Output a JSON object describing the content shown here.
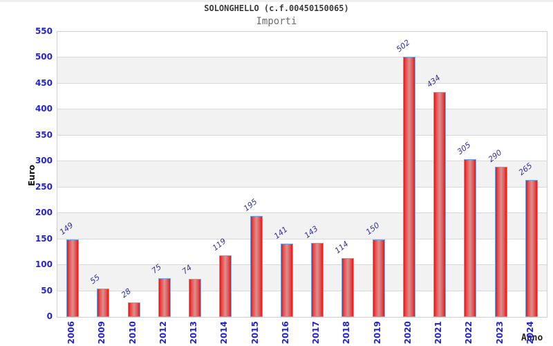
{
  "page": {
    "title": "SOLONGHELLO (c.f.00450150065)",
    "subtitle": "Importi"
  },
  "chart_data": {
    "type": "bar",
    "title": "SOLONGHELLO (c.f.00450150065)",
    "subtitle": "Importi",
    "xlabel": "Anno",
    "ylabel": "Euro",
    "categories": [
      "2006",
      "2009",
      "2010",
      "2012",
      "2013",
      "2014",
      "2015",
      "2016",
      "2017",
      "2018",
      "2019",
      "2020",
      "2021",
      "2022",
      "2023",
      "2024"
    ],
    "values": [
      149,
      55,
      28,
      75,
      74,
      119,
      195,
      141,
      143,
      114,
      150,
      502,
      434,
      305,
      290,
      265
    ],
    "ylim": [
      0,
      550
    ],
    "ytick_step": 50,
    "yticks": [
      0,
      50,
      100,
      150,
      200,
      250,
      300,
      350,
      400,
      450,
      500,
      550
    ],
    "grid": "horizontal-gridlines-with-alternating-bands",
    "legend": "none",
    "bar_labels_rotated": true,
    "colors": {
      "bar_fill_edge": "#ee1111",
      "bar_fill_center": "#dc9090",
      "bar_border": "#74a9e8",
      "axis_tick_label": "#2424d2",
      "bar_value_label": "#30309a",
      "band_gray": "#f2f2f2",
      "band_white": "#ffffff",
      "gridline": "#d9d9d9",
      "title_text": "#3a3a3a",
      "subtitle_text": "#6e6e6e"
    }
  }
}
